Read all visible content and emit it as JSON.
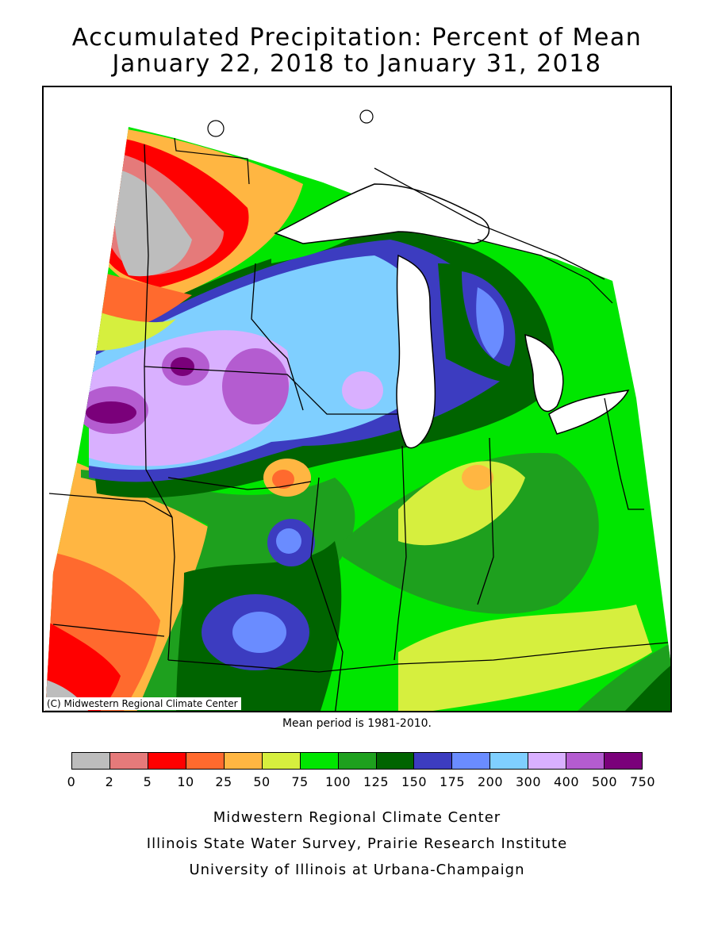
{
  "title": {
    "line1": "Accumulated Precipitation: Percent of Mean",
    "line2": "January 22, 2018 to January 31, 2018"
  },
  "map": {
    "region": "Midwestern United States",
    "copyright": "(C) Midwestern Regional Climate Center",
    "water_color": "#ffffff",
    "state_border_color": "#000000"
  },
  "mean_period": "Mean period is 1981-2010.",
  "legend": {
    "breaks": [
      "0",
      "2",
      "5",
      "10",
      "25",
      "50",
      "75",
      "100",
      "125",
      "150",
      "175",
      "200",
      "300",
      "400",
      "500",
      "750"
    ],
    "colors": [
      "#bdbdbd",
      "#e57a7a",
      "#ff0000",
      "#ff6a2e",
      "#ffb642",
      "#d6ef3e",
      "#00e600",
      "#1ea01e",
      "#006400",
      "#3c3cc0",
      "#6a8cff",
      "#7fcfff",
      "#d9b0ff",
      "#b45cd0",
      "#7a007a"
    ]
  },
  "footer": {
    "line1": "Midwestern Regional Climate Center",
    "line2": "Illinois State Water Survey, Prairie Research Institute",
    "line3": "University of Illinois at Urbana-Champaign"
  }
}
